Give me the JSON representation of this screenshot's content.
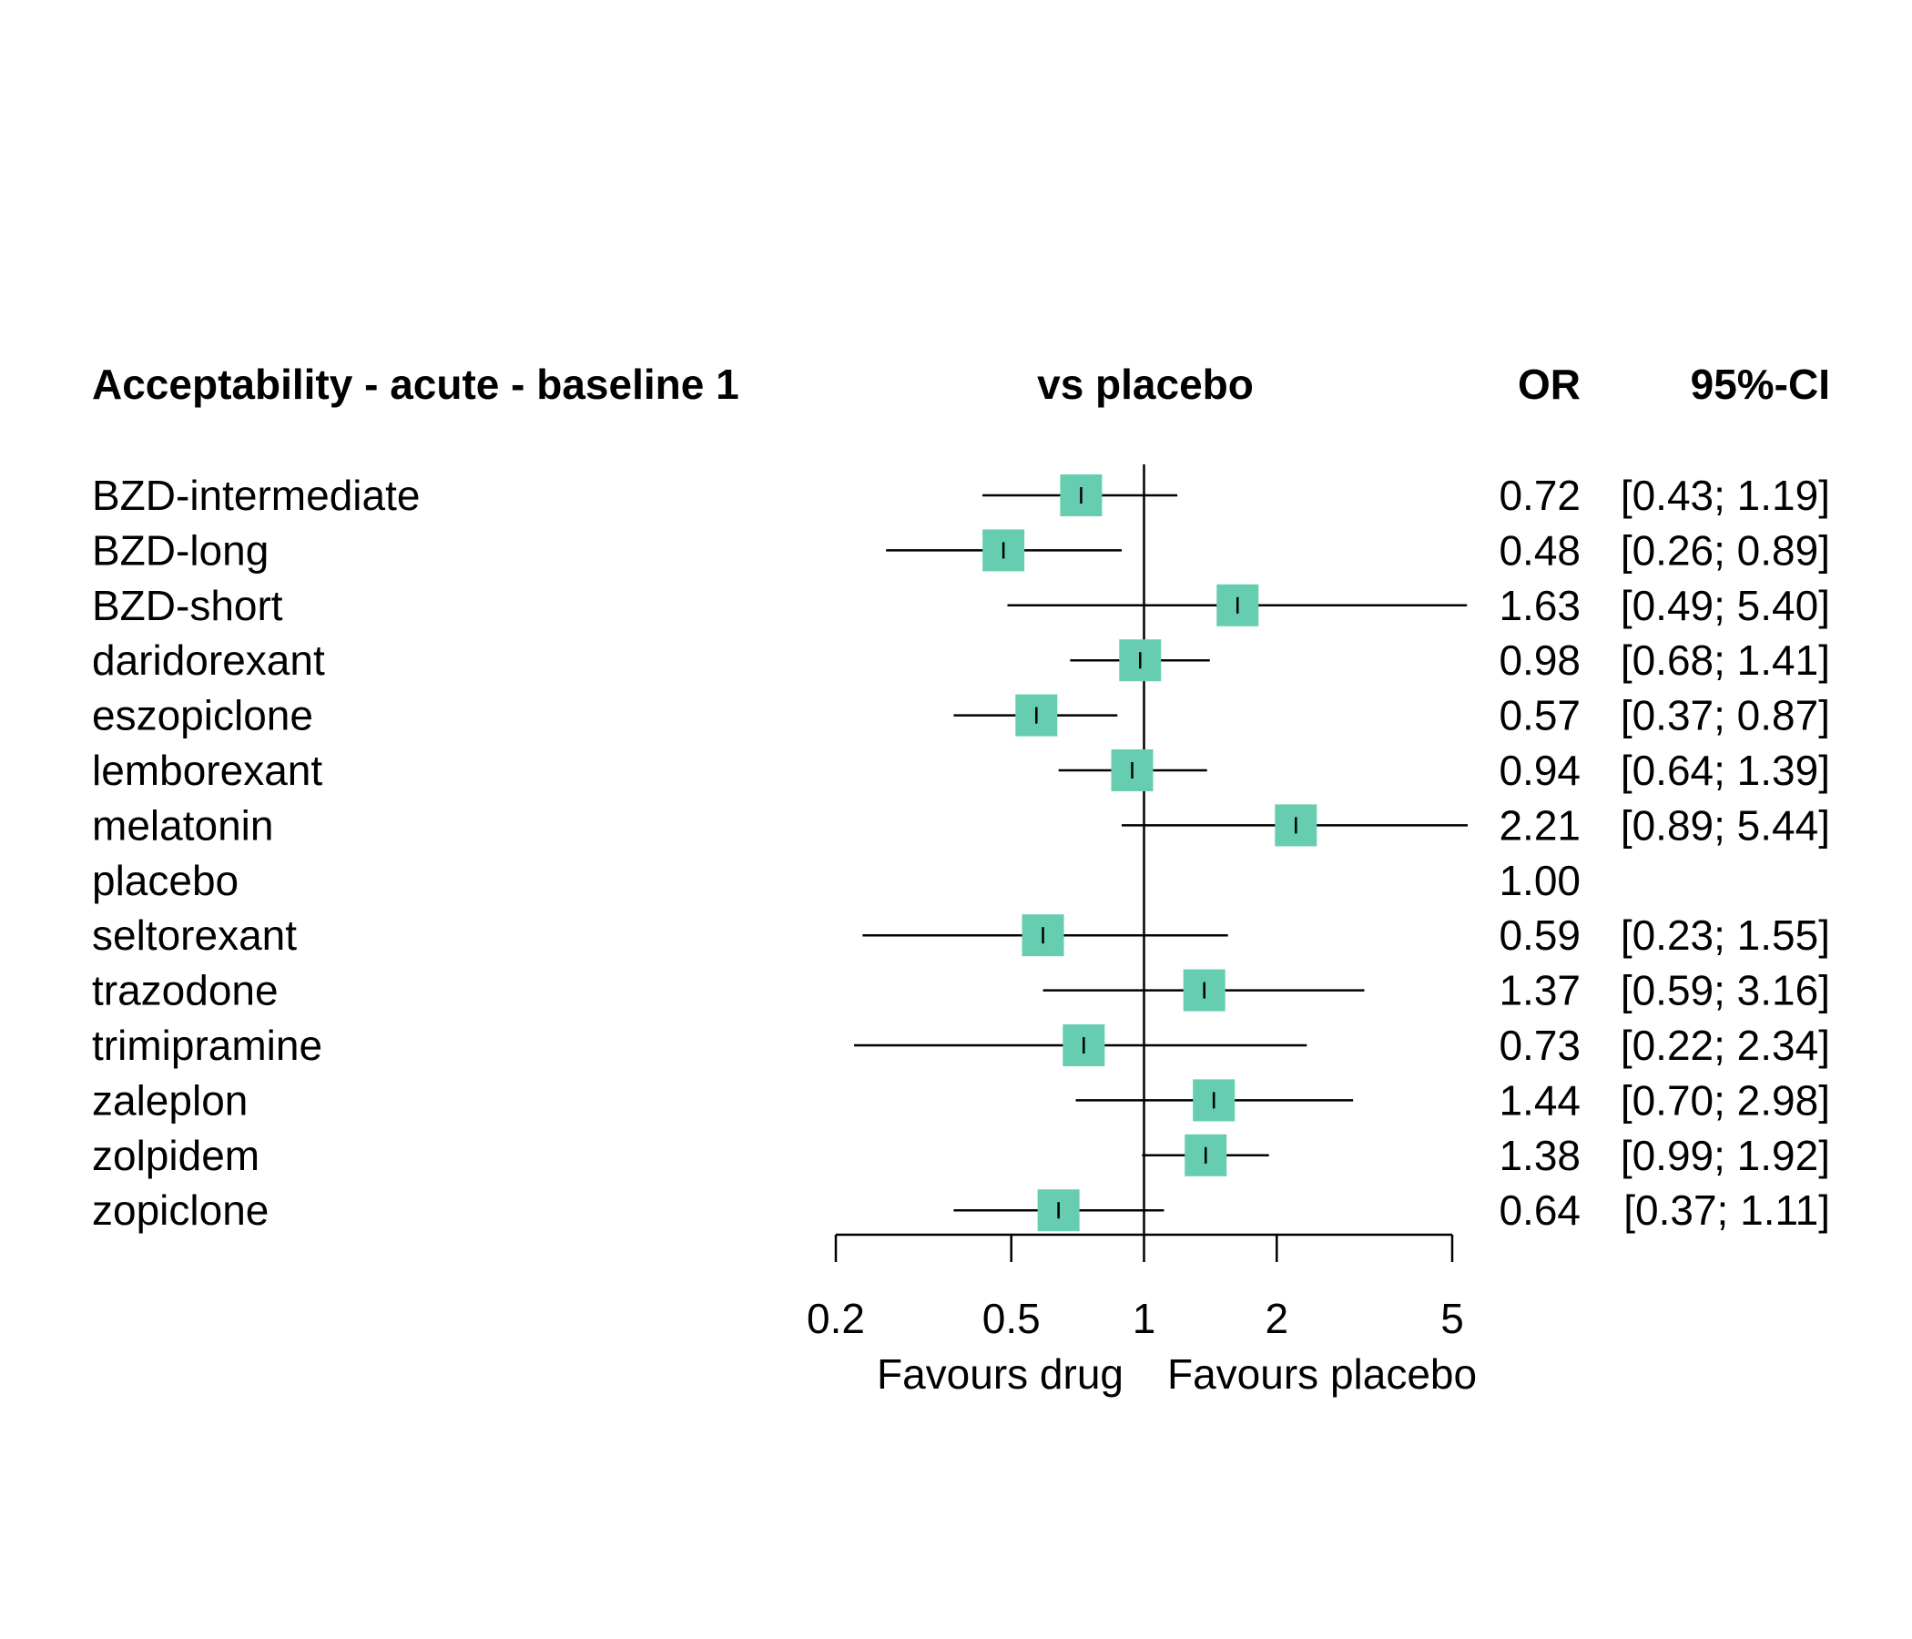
{
  "chart_data": {
    "type": "forest",
    "title": "Acceptability - acute - baseline 1",
    "comparison_label": "vs placebo",
    "col_headers": {
      "estimate": "OR",
      "ci": "95%-CI"
    },
    "x_scale": "log",
    "xlim": [
      0.2,
      5
    ],
    "x_ticks": [
      {
        "value": 0.2,
        "label": "0.2"
      },
      {
        "value": 0.5,
        "label": "0.5"
      },
      {
        "value": 1,
        "label": "1"
      },
      {
        "value": 2,
        "label": "2"
      },
      {
        "value": 5,
        "label": "5"
      }
    ],
    "reference_value": 1,
    "favours_left": "Favours drug",
    "favours_right": "Favours placebo",
    "marker_color": "#66CDB0",
    "rows": [
      {
        "label": "BZD-intermediate",
        "or": 0.72,
        "lower": 0.43,
        "upper": 1.19,
        "or_text": "0.72",
        "ci_text": "[0.43; 1.19]"
      },
      {
        "label": "BZD-long",
        "or": 0.48,
        "lower": 0.26,
        "upper": 0.89,
        "or_text": "0.48",
        "ci_text": "[0.26; 0.89]"
      },
      {
        "label": "BZD-short",
        "or": 1.63,
        "lower": 0.49,
        "upper": 5.4,
        "or_text": "1.63",
        "ci_text": "[0.49; 5.40]"
      },
      {
        "label": "daridorexant",
        "or": 0.98,
        "lower": 0.68,
        "upper": 1.41,
        "or_text": "0.98",
        "ci_text": "[0.68; 1.41]"
      },
      {
        "label": "eszopiclone",
        "or": 0.57,
        "lower": 0.37,
        "upper": 0.87,
        "or_text": "0.57",
        "ci_text": "[0.37; 0.87]"
      },
      {
        "label": "lemborexant",
        "or": 0.94,
        "lower": 0.64,
        "upper": 1.39,
        "or_text": "0.94",
        "ci_text": "[0.64; 1.39]"
      },
      {
        "label": "melatonin",
        "or": 2.21,
        "lower": 0.89,
        "upper": 5.44,
        "or_text": "2.21",
        "ci_text": "[0.89; 5.44]"
      },
      {
        "label": "placebo",
        "or": 1.0,
        "lower": null,
        "upper": null,
        "or_text": "1.00",
        "ci_text": ""
      },
      {
        "label": "seltorexant",
        "or": 0.59,
        "lower": 0.23,
        "upper": 1.55,
        "or_text": "0.59",
        "ci_text": "[0.23; 1.55]"
      },
      {
        "label": "trazodone",
        "or": 1.37,
        "lower": 0.59,
        "upper": 3.16,
        "or_text": "1.37",
        "ci_text": "[0.59; 3.16]"
      },
      {
        "label": "trimipramine",
        "or": 0.73,
        "lower": 0.22,
        "upper": 2.34,
        "or_text": "0.73",
        "ci_text": "[0.22; 2.34]"
      },
      {
        "label": "zaleplon",
        "or": 1.44,
        "lower": 0.7,
        "upper": 2.98,
        "or_text": "1.44",
        "ci_text": "[0.70; 2.98]"
      },
      {
        "label": "zolpidem",
        "or": 1.38,
        "lower": 0.99,
        "upper": 1.92,
        "or_text": "1.38",
        "ci_text": "[0.99; 1.92]"
      },
      {
        "label": "zopiclone",
        "or": 0.64,
        "lower": 0.37,
        "upper": 1.11,
        "or_text": "0.64",
        "ci_text": "[0.37; 1.11]"
      }
    ]
  }
}
